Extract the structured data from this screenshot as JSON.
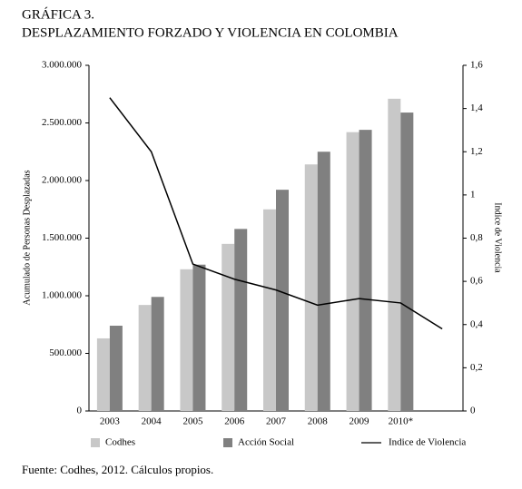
{
  "chart_data": {
    "type": "bar-line",
    "title": "GRÁFICA 3.",
    "subtitle": "DESPLAZAMIENTO FORZADO Y VIOLENCIA EN COLOMBIA",
    "ylabel": "Acumulado de Personas Desplazadas",
    "y2label": "Indice de Violencia",
    "source": "Fuente: Codhes, 2012. Cálculos propios.",
    "categories": [
      "2003",
      "2004",
      "2005",
      "2006",
      "2007",
      "2008",
      "2009",
      "2010*",
      null
    ],
    "series": [
      {
        "name": "Codhes",
        "type": "bar",
        "color": "#c8c8c8",
        "values": [
          630000,
          920000,
          1230000,
          1450000,
          1750000,
          2140000,
          2420000,
          2710000,
          null
        ]
      },
      {
        "name": "Acción Social",
        "type": "bar",
        "color": "#808080",
        "values": [
          740000,
          990000,
          1270000,
          1580000,
          1920000,
          2250000,
          2440000,
          2590000,
          null
        ]
      },
      {
        "name": "Indice de Violencia",
        "type": "line",
        "axis": "y2",
        "color": "#000000",
        "values": [
          1.45,
          1.2,
          0.68,
          0.61,
          0.56,
          0.49,
          0.52,
          0.5,
          0.38
        ]
      }
    ],
    "ylim": [
      0,
      3000000
    ],
    "yticks": [
      0,
      {
        "value": 500000,
        "label": "500.000"
      },
      {
        "value": 1000000,
        "label": "1.000.000"
      },
      {
        "value": 1500000,
        "label": "1.500.000"
      },
      {
        "value": 2000000,
        "label": "2.000.000"
      },
      {
        "value": 2500000,
        "label": "2.500.000"
      },
      {
        "value": 3000000,
        "label": "3.000.000"
      }
    ],
    "y2lim": [
      0,
      1.6
    ],
    "y2ticks": [
      0,
      {
        "value": 0.2,
        "label": "0,2"
      },
      {
        "value": 0.4,
        "label": "0,4"
      },
      {
        "value": 0.6,
        "label": "0,6"
      },
      {
        "value": 0.8,
        "label": "0,8"
      },
      1,
      {
        "value": 1.2,
        "label": "1,2"
      },
      {
        "value": 1.4,
        "label": "1,4"
      },
      {
        "value": 1.6,
        "label": "1,6"
      }
    ],
    "legend": "bottom"
  }
}
